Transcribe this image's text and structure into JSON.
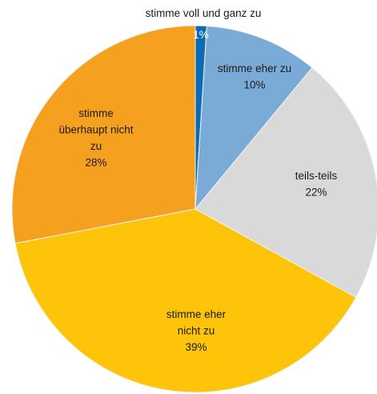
{
  "chart_data": {
    "type": "pie",
    "start_angle_deg": 0,
    "direction": "clockwise",
    "slices": [
      {
        "label": "stimme voll und ganz zu",
        "value": 1,
        "value_label": "1%",
        "color": "#0b6bb5",
        "label_outside": true
      },
      {
        "label": "stimme eher zu",
        "value": 10,
        "value_label": "10%",
        "color": "#7aabd6"
      },
      {
        "label": "teils-teils",
        "value": 22,
        "value_label": "22%",
        "color": "#d9d9d9"
      },
      {
        "label": "stimme eher nicht zu",
        "value": 39,
        "value_label": "39%",
        "color": "#fdc40a"
      },
      {
        "label": "stimme überhaupt nicht zu",
        "value": 28,
        "value_label": "28%",
        "color": "#f5a11f"
      }
    ],
    "edge_color": "#f2f2f2"
  }
}
